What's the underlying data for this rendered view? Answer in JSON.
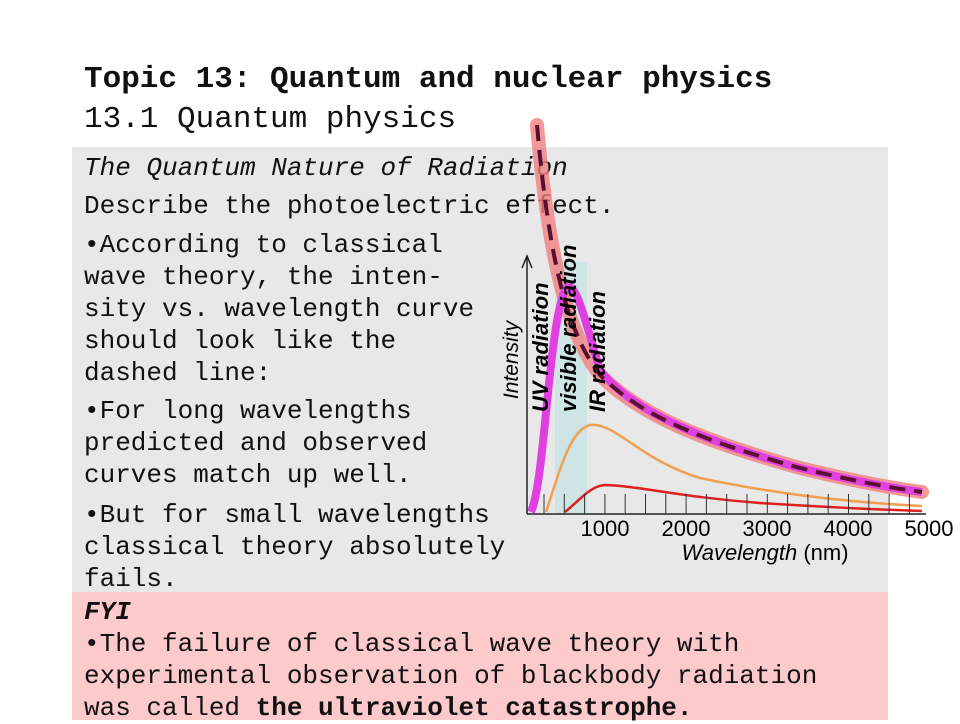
{
  "header": {
    "title": "Topic 13: Quantum and nuclear physics",
    "subtitle": "13.1 Quantum physics"
  },
  "body": {
    "section": "The Quantum Nature of Radiation",
    "objective": "Describe the photoelectric effect.",
    "bullets": [
      [
        "•According to classical",
        "wave theory, the inten-",
        "sity vs. wavelength curve",
        "should look like the",
        "dashed line:"
      ],
      [
        "•For long wavelengths",
        "predicted and observed",
        "curves match up well."
      ],
      [
        "•But for small wavelengths",
        "classical theory absolutely",
        "fails."
      ]
    ]
  },
  "figure": {
    "y_label": "Intensity",
    "x_label": {
      "main": "Wavelength",
      "unit": "(nm)"
    },
    "x_ticks": [
      "1000",
      "2000",
      "3000",
      "4000",
      "5000"
    ],
    "regions": [
      "UV radiation",
      "visible radiation",
      "IR radiation"
    ]
  },
  "fyi": {
    "heading": "FYI",
    "lines": [
      "•The failure of classical wave theory with",
      "experimental observation of blackbody radiation"
    ],
    "last_line": {
      "text": "was called ",
      "emphasis": "the ultraviolet catastrophe."
    }
  }
}
